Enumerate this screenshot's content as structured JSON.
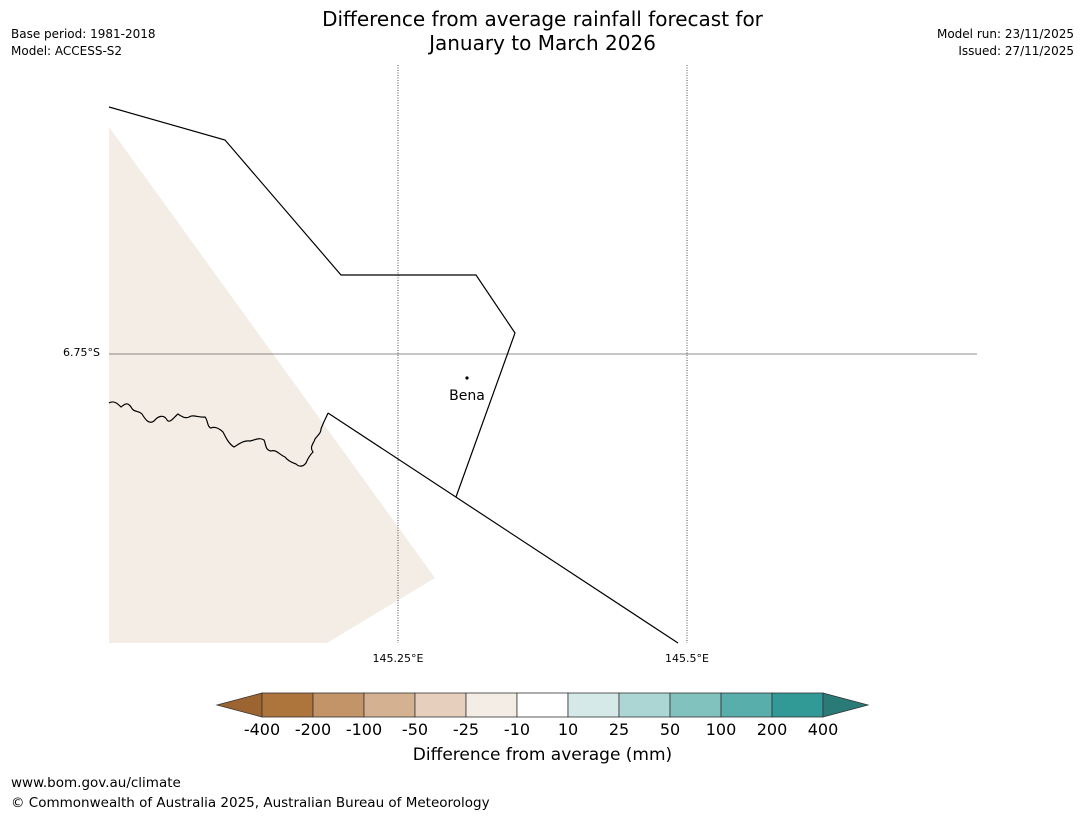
{
  "header": {
    "title_line1": "Difference from average rainfall forecast for",
    "title_line2": "January to March 2026",
    "base_period": "Base period: 1981-2018",
    "model": "Model: ACCESS-S2",
    "model_run": "Model run: 23/11/2025",
    "issued": "Issued: 27/11/2025"
  },
  "map": {
    "lat_labels": [
      "6.75°S"
    ],
    "lon_labels": [
      "145.25°E",
      "145.5°E"
    ],
    "places": [
      {
        "name": "Bena"
      }
    ],
    "colors": {
      "forecast_fill": "#f4ede6",
      "boundary": "#000000",
      "gridline": "#555555"
    }
  },
  "legend": {
    "title": "Difference from average (mm)",
    "tick_labels": [
      "-400",
      "-200",
      "-100",
      "-50",
      "-25",
      "-10",
      "10",
      "25",
      "50",
      "100",
      "200",
      "400"
    ],
    "colors": [
      "#9c6430",
      "#ad753b",
      "#c29468",
      "#d4b291",
      "#e6d0bd",
      "#f4ede6",
      "#ffffff",
      "#d5e9e8",
      "#acd6d4",
      "#81c1be",
      "#57aeab",
      "#319a97",
      "#2a7a78"
    ]
  },
  "footer": {
    "url": "www.bom.gov.au/climate",
    "copyright": "© Commonwealth of Australia 2025, Australian Bureau of Meteorology"
  }
}
